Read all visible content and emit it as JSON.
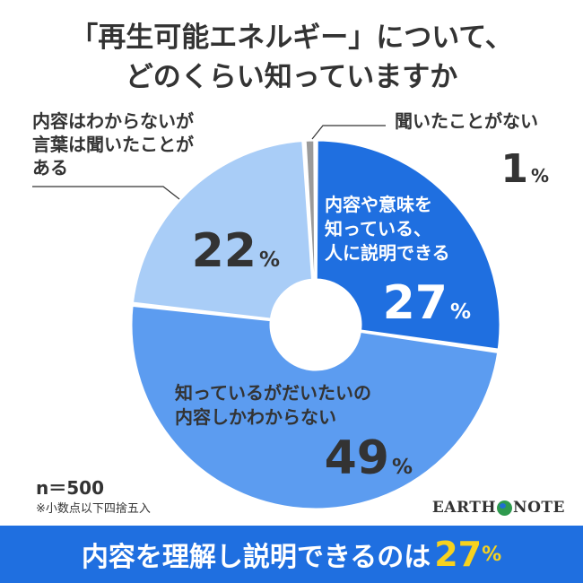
{
  "title": {
    "line1": "「再生可能エネルギー」について、",
    "line2": "どのくらい知っていますか"
  },
  "chart_data": {
    "type": "pie",
    "variant": "donut",
    "categories": [
      "内容や意味を知っている、人に説明できる",
      "知っているがだいたいの内容しかわからない",
      "内容はわからないが言葉は聞いたことがある",
      "聞いたことがない"
    ],
    "values": [
      27,
      49,
      22,
      1
    ],
    "unit": "%",
    "colors": [
      "#1f6fe0",
      "#5c9cf0",
      "#a9cdf7",
      "#9a9a9a"
    ],
    "slices": [
      {
        "label_lines": [
          "内容や意味を",
          "知っている、",
          "人に説明できる"
        ],
        "value_text": "27",
        "unit": "%"
      },
      {
        "label_lines": [
          "知っているがだいたいの",
          "内容しかわからない"
        ],
        "value_text": "49",
        "unit": "%"
      },
      {
        "label_lines": [
          "内容はわからないが",
          "言葉は聞いたことが",
          "ある"
        ],
        "value_text": "22",
        "unit": "%"
      },
      {
        "label_lines": [
          "聞いたことがない"
        ],
        "value_text": "1",
        "unit": "%"
      }
    ]
  },
  "sample": "n＝500",
  "note": "※小数点以下四捨五入",
  "logo": {
    "left": "EARTH",
    "right": "NOTE"
  },
  "banner": {
    "text": "内容を理解し説明できるのは",
    "value": "27",
    "unit": "%"
  }
}
